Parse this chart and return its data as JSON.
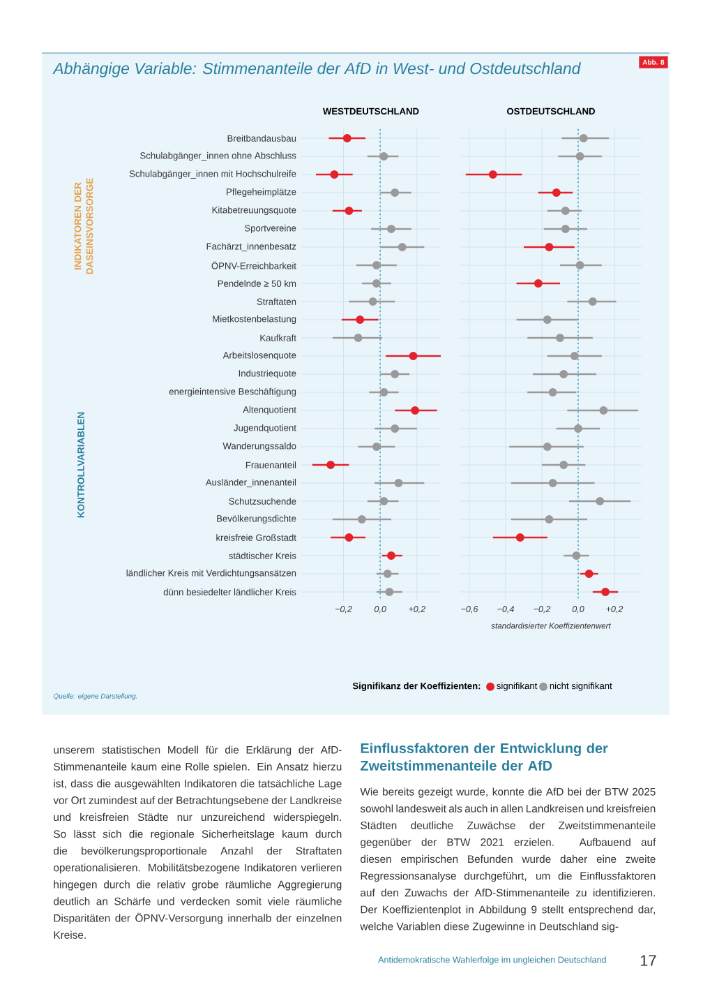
{
  "chart_data": [
    {
      "type": "scatter",
      "orientation": "horizontal",
      "title": "Abhängige Variable: Stimmenanteile der AfD in West- und Ostdeutschland",
      "subtitle": "WESTDEUTSCHLAND",
      "categories": [
        "Breitbandausbau",
        "Schulabgänger_innen ohne Abschluss",
        "Schulabgänger_innen mit Hochschulreife",
        "Pflegeheimplätze",
        "Kitabetreuungsquote",
        "Sportvereine",
        "Fachärzt_innenbesatz",
        "ÖPNV-Erreichbarkeit",
        "Pendelnde ≥ 50 km",
        "Straftaten",
        "Mietkostenbelastung",
        "Kaufkraft",
        "Arbeitslosenquote",
        "Industriequote",
        "energieintensive Beschäftigung",
        "Altenquotient",
        "Jugendquotient",
        "Wanderungssaldo",
        "Frauenanteil",
        "Ausländer_innenanteil",
        "Schutzsuchende",
        "Bevölkerungsdichte",
        "kreisfreie Großstadt",
        "städtischer Kreis",
        "ländlicher Kreis mit Verdichtungsansätzen",
        "dünn besiedelter ländlicher Kreis"
      ],
      "xlim": [
        -0.43,
        0.33
      ],
      "xticks": [
        {
          "value": -0.2,
          "label": "−0,2"
        },
        {
          "value": 0,
          "label": "0,0"
        },
        {
          "value": 0.2,
          "label": "+0,2"
        }
      ],
      "grid": true,
      "marker": "circle",
      "ref_lines": [
        {
          "axis": "x",
          "value": 0,
          "color": "#3aa6b9",
          "line_style": "dotted"
        }
      ],
      "series": [
        {
          "color": "#e3232c",
          "values": [
            -0.18,
            null,
            -0.25,
            null,
            -0.17,
            null,
            null,
            null,
            null,
            null,
            -0.11,
            null,
            0.18,
            null,
            null,
            0.19,
            null,
            null,
            -0.27,
            null,
            null,
            null,
            -0.17,
            0.06,
            null,
            null
          ],
          "errors": [
            [
              -0.28,
              -0.08
            ],
            null,
            [
              -0.35,
              -0.15
            ],
            null,
            [
              -0.26,
              -0.1
            ],
            null,
            null,
            null,
            null,
            null,
            [
              -0.21,
              -0.01
            ],
            null,
            [
              0.03,
              0.33
            ],
            null,
            null,
            [
              0.08,
              0.31
            ],
            null,
            null,
            [
              -0.37,
              -0.17
            ],
            null,
            null,
            null,
            [
              -0.27,
              -0.08
            ],
            [
              0.01,
              0.12
            ],
            null,
            null
          ]
        },
        {
          "color": "#9a9a9a",
          "values": [
            null,
            0.02,
            null,
            0.08,
            null,
            0.06,
            0.12,
            -0.02,
            -0.02,
            -0.04,
            null,
            -0.12,
            null,
            0.08,
            0.02,
            null,
            0.08,
            -0.02,
            null,
            0.1,
            0.02,
            -0.1,
            null,
            null,
            0.04,
            0.05
          ],
          "errors": [
            null,
            [
              -0.07,
              0.1
            ],
            null,
            [
              0.0,
              0.17
            ],
            null,
            [
              -0.05,
              0.17
            ],
            [
              0.0,
              0.24
            ],
            [
              -0.13,
              0.09
            ],
            [
              -0.1,
              0.06
            ],
            [
              -0.17,
              0.08
            ],
            null,
            [
              -0.26,
              0.01
            ],
            null,
            [
              0.0,
              0.16
            ],
            [
              -0.06,
              0.1
            ],
            null,
            [
              -0.03,
              0.2
            ],
            [
              -0.12,
              0.08
            ],
            null,
            [
              -0.03,
              0.24
            ],
            [
              -0.07,
              0.1
            ],
            [
              -0.26,
              0.06
            ],
            null,
            null,
            [
              -0.02,
              0.1
            ],
            [
              -0.02,
              0.12
            ]
          ]
        }
      ],
      "annotations": [
        "Abb. 8",
        "INDIKATOREN DER DASEINSVORSORGE",
        "KONTROLLVARIABLEN",
        "Quelle: eigene Darstellung.",
        "unserem statistischen Modell für die Erklärung der AfD-Stimmenanteile kaum eine Rolle spielen. Ein Ansatz hierzu ist, dass die ausgewählten Indikatoren die tatsächliche Lage vor Ort zumindest auf der Betrachtungsebene der Landkreise und kreisfreien Städte nur unzureichend widerspiegeln. So lässt sich die regionale Sicherheitslage kaum durch die bevölkerungsproportionale Anzahl der Straftaten operationalisieren. Mobilitätsbezogene Indikatoren verlieren hingegen durch die relativ grobe räumliche Aggregierung deutlich an Schärfe und verdecken somit viele räumliche Disparitäten der ÖPNV-Versorgung innerhalb der einzelnen Kreise.",
        "Einflussfaktoren der Entwicklung der Zweitstimmenanteile der AfD",
        "Wie bereits gezeigt wurde, konnte die AfD bei der BTW 2025 sowohl landesweit als auch in allen Landkreisen und kreisfreien Städten deutliche Zuwächse der Zweitstimmenanteile gegenüber der BTW 2021 erzielen. Aufbauend auf diesen empirischen Befunden wurde daher eine zweite Regressionsanalyse durchgeführt, um die Einflussfaktoren auf den Zuwachs der AfD-Stimmenanteile zu identifizieren. Der Koeffizientenplot in Abbildung 9 stellt entsprechend dar, welche Variablen diese Zugewinne in Deutschland sig-",
        "Antidemokratische Wahlerfolge im ungleichen Deutschland",
        "17"
      ]
    },
    {
      "type": "scatter",
      "orientation": "horizontal",
      "subtitle": "OSTDEUTSCHLAND",
      "xlabel": "standardisierter Koeffizientenwert",
      "legend_title": "Signifikanz der Koeffizienten:",
      "categories": [
        null,
        null,
        null,
        null,
        null,
        null,
        null,
        null,
        null,
        null,
        null,
        null,
        null,
        null,
        null,
        null,
        null,
        null,
        null,
        null,
        null,
        null,
        null,
        null,
        null,
        null
      ],
      "tick_labels": "x",
      "xlim": [
        -0.65,
        0.35
      ],
      "xticks": [
        {
          "value": -0.6,
          "label": "−0,6"
        },
        {
          "value": -0.4,
          "label": "−0,4"
        },
        {
          "value": -0.2,
          "label": "−0,2"
        },
        {
          "value": 0,
          "label": "0,0"
        },
        {
          "value": 0.2,
          "label": "+0,2"
        }
      ],
      "grid": true,
      "marker": "circle",
      "legend": "bottom",
      "ref_lines": [
        {
          "axis": "x",
          "value": 0,
          "color": "#3aa6b9",
          "line_style": "dotted"
        }
      ],
      "series": [
        {
          "name": "signifikant",
          "color": "#e3232c",
          "values": [
            null,
            null,
            -0.47,
            -0.12,
            null,
            null,
            -0.16,
            null,
            -0.22,
            null,
            null,
            null,
            null,
            null,
            null,
            null,
            null,
            null,
            null,
            null,
            null,
            null,
            -0.32,
            null,
            0.06,
            0.15
          ],
          "errors": [
            null,
            null,
            [
              -0.62,
              -0.31
            ],
            [
              -0.22,
              -0.03
            ],
            null,
            null,
            [
              -0.3,
              -0.02
            ],
            null,
            [
              -0.34,
              -0.1
            ],
            null,
            null,
            null,
            null,
            null,
            null,
            null,
            null,
            null,
            null,
            null,
            null,
            null,
            [
              -0.47,
              -0.17
            ],
            null,
            [
              0.01,
              0.11
            ],
            [
              0.08,
              0.22
            ]
          ]
        },
        {
          "name": "nicht signifikant",
          "color": "#9a9a9a",
          "values": [
            0.03,
            0.01,
            null,
            null,
            -0.07,
            -0.07,
            null,
            0.01,
            null,
            0.08,
            -0.17,
            -0.1,
            -0.02,
            -0.08,
            -0.14,
            0.14,
            0.0,
            -0.17,
            -0.08,
            -0.14,
            0.12,
            -0.16,
            null,
            -0.01,
            null,
            null
          ],
          "errors": [
            [
              -0.09,
              0.17
            ],
            [
              -0.11,
              0.13
            ],
            null,
            null,
            [
              -0.17,
              0.02
            ],
            [
              -0.19,
              0.05
            ],
            null,
            [
              -0.1,
              0.13
            ],
            null,
            [
              -0.06,
              0.21
            ],
            [
              -0.34,
              0.0
            ],
            [
              -0.28,
              0.08
            ],
            [
              -0.17,
              0.13
            ],
            [
              -0.25,
              0.1
            ],
            [
              -0.28,
              -0.01
            ],
            [
              -0.06,
              0.33
            ],
            [
              -0.12,
              0.12
            ],
            [
              -0.38,
              0.03
            ],
            [
              -0.2,
              0.04
            ],
            [
              -0.37,
              0.09
            ],
            [
              -0.05,
              0.29
            ],
            [
              -0.37,
              0.05
            ],
            null,
            [
              -0.08,
              0.06
            ],
            null,
            null
          ]
        }
      ]
    }
  ]
}
